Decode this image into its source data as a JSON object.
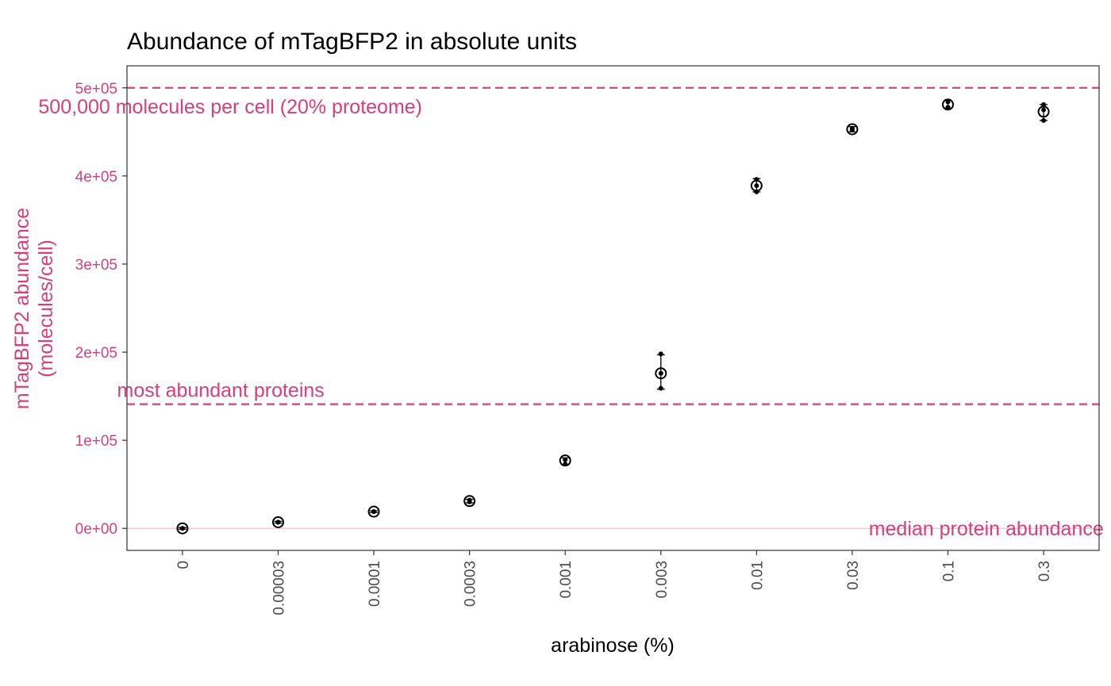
{
  "chart_data": {
    "type": "scatter",
    "title": "Abundance of mTagBFP2 in absolute units",
    "xlabel": "arabinose (%)",
    "ylabel": [
      "mTagBFP2 abundance",
      "(molecules/cell)"
    ],
    "categories": [
      "0",
      "0.00003",
      "0.0001",
      "0.0003",
      "0.001",
      "0.003",
      "0.01",
      "0.03",
      "0.1",
      "0.3"
    ],
    "ylim": [
      -25000,
      525000
    ],
    "yticks": [
      0,
      100000,
      200000,
      300000,
      400000,
      500000
    ],
    "ytick_labels": [
      "0e+00",
      "1e+05",
      "2e+05",
      "3e+05",
      "4e+05",
      "5e+05"
    ],
    "grid": false,
    "series": [
      {
        "mean": [
          0,
          7000,
          19000,
          31000,
          77000,
          176000,
          389000,
          453000,
          481000,
          473000
        ],
        "err_low": [
          -1000,
          6000,
          18000,
          29000,
          72000,
          158000,
          382000,
          450000,
          477000,
          463000
        ],
        "err_high": [
          1000,
          8000,
          20000,
          33000,
          80000,
          197000,
          397000,
          456000,
          486000,
          481000
        ],
        "replicates": [
          [
            0,
            0
          ],
          [
            7000,
            7000
          ],
          [
            19000,
            19000
          ],
          [
            30000,
            32000
          ],
          [
            73000,
            78000
          ],
          [
            159000,
            176000,
            198000
          ],
          [
            382000,
            389000,
            396000
          ],
          [
            452000,
            454000
          ],
          [
            478000,
            484000
          ],
          [
            463000,
            475000,
            481000
          ]
        ]
      }
    ],
    "reference_lines": [
      {
        "y": 500000,
        "style": "dashed",
        "label": "500,000 molecules per cell (20% proteome)",
        "label_x": 0.5
      },
      {
        "y": 141000,
        "style": "dashed",
        "label": "most abundant proteins",
        "label_x": 0.4
      },
      {
        "y": 0,
        "style": "solid-light",
        "label": "median protein abundance",
        "label_x": 8.4
      }
    ],
    "colors": {
      "accent": "#d63f7a",
      "median_line": "#f5cad9",
      "points": "#000000",
      "panel_border": "#333333"
    }
  }
}
